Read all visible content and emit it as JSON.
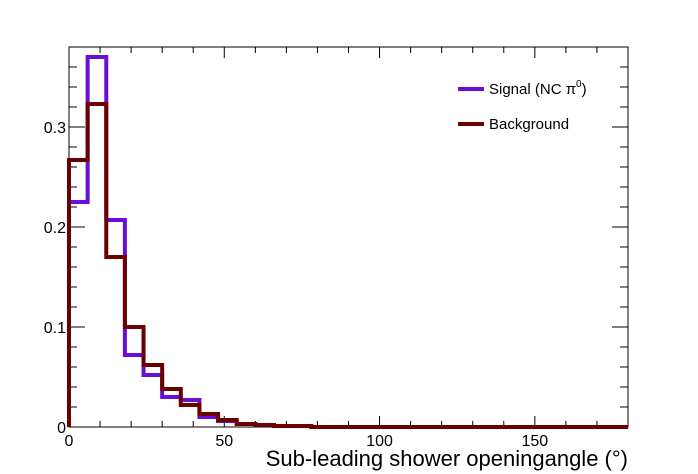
{
  "chart_data": {
    "type": "histogram",
    "xlabel": "Sub-leading shower openingangle (°)",
    "ylabel": "",
    "xlim": [
      0,
      180
    ],
    "ylim": [
      0,
      0.38
    ],
    "bin_width": 6,
    "x_major_ticks": [
      0,
      50,
      100,
      150
    ],
    "x_tick_labels": [
      "0",
      "50",
      "100",
      "150"
    ],
    "y_major_ticks": [
      0,
      0.1,
      0.2,
      0.3
    ],
    "y_tick_labels": [
      "0",
      "0.1",
      "0.2",
      "0.3"
    ],
    "grid": false,
    "legend_position": "top-right",
    "series": [
      {
        "name": "Signal (NC π",
        "name_sup": "0",
        "name_suffix": ")",
        "color": "#6a0dd6",
        "values": [
          0.225,
          0.37,
          0.207,
          0.072,
          0.052,
          0.03,
          0.027,
          0.01,
          0.006,
          0.003,
          0.002,
          0.001,
          0.001,
          0,
          0,
          0,
          0,
          0,
          0,
          0,
          0,
          0,
          0,
          0,
          0,
          0,
          0,
          0,
          0,
          0
        ]
      },
      {
        "name": "Background",
        "color": "#6b0000",
        "values": [
          0.267,
          0.323,
          0.17,
          0.1,
          0.062,
          0.038,
          0.022,
          0.013,
          0.007,
          0.003,
          0.002,
          0.001,
          0.001,
          0,
          0,
          0,
          0,
          0,
          0,
          0,
          0,
          0,
          0,
          0,
          0,
          0,
          0,
          0,
          0,
          0
        ]
      }
    ]
  }
}
